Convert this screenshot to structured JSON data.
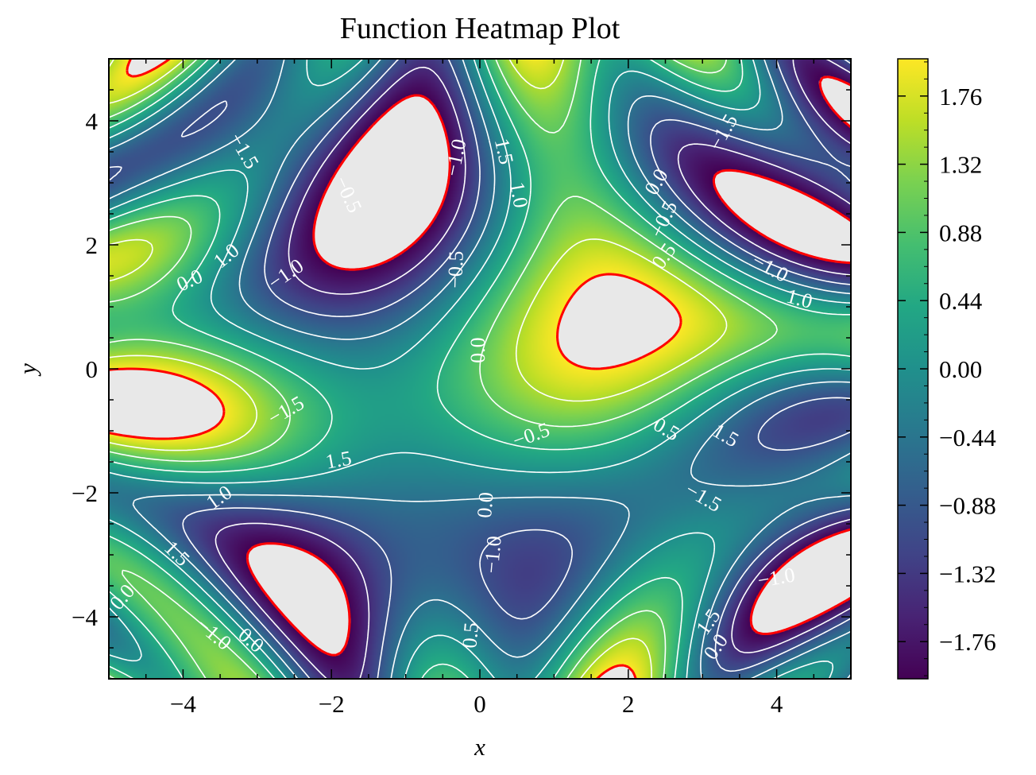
{
  "chart_data": {
    "type": "heatmap",
    "title": "Function Heatmap Plot",
    "xlabel": "x",
    "ylabel": "y",
    "xlim": [
      -5,
      5
    ],
    "ylim": [
      -5,
      5
    ],
    "x_ticks": [
      -4,
      -2,
      0,
      2,
      4
    ],
    "y_ticks": [
      -4,
      -2,
      0,
      2,
      4
    ],
    "x_tick_labels": [
      "−4",
      "−2",
      "0",
      "2",
      "4"
    ],
    "y_tick_labels": [
      "−4",
      "−2",
      "0",
      "2",
      "4"
    ],
    "colormap": "viridis",
    "masked_color": "#e8e8e8",
    "value_range": [
      -2.0,
      2.0
    ],
    "colorbar": {
      "ticks": [
        1.76,
        1.32,
        0.88,
        0.44,
        0.0,
        -0.44,
        -0.88,
        -1.32,
        -1.76
      ],
      "labels": [
        "1.76",
        "1.32",
        "0.88",
        "0.44",
        "0.00",
        "−0.44",
        "−0.88",
        "−1.32",
        "−1.76"
      ]
    },
    "contour_levels": [
      -1.5,
      -1.0,
      -0.5,
      0.0,
      0.5,
      1.0,
      1.5
    ],
    "boundary_level_color": "#ff0000",
    "contour_color": "#ffffff",
    "contour_labels": [
      {
        "text": "−1.5",
        "x": -3.2,
        "y": 3.5,
        "rot": 60
      },
      {
        "text": "−1.5",
        "x": 3.3,
        "y": 3.8,
        "rot": -60
      },
      {
        "text": "−1.0",
        "x": -0.3,
        "y": 3.4,
        "rot": -78
      },
      {
        "text": "1.5",
        "x": 0.3,
        "y": 3.5,
        "rot": 78
      },
      {
        "text": "−0.5",
        "x": -1.8,
        "y": 2.8,
        "rot": 65
      },
      {
        "text": "1.0",
        "x": 0.5,
        "y": 2.8,
        "rot": 80
      },
      {
        "text": "0.0",
        "x": 2.4,
        "y": 3.0,
        "rot": -60
      },
      {
        "text": "−0.5",
        "x": 2.5,
        "y": 2.4,
        "rot": -65
      },
      {
        "text": "0.5",
        "x": 2.5,
        "y": 1.8,
        "rot": -55
      },
      {
        "text": "1.0",
        "x": -3.4,
        "y": 1.8,
        "rot": -40
      },
      {
        "text": "0.0",
        "x": -3.9,
        "y": 1.4,
        "rot": -25
      },
      {
        "text": "−1.0",
        "x": -2.6,
        "y": 1.5,
        "rot": -35
      },
      {
        "text": "−0.5",
        "x": -0.3,
        "y": 1.6,
        "rot": -88
      },
      {
        "text": "0.0",
        "x": 0.0,
        "y": 0.3,
        "rot": -90
      },
      {
        "text": "−1.0",
        "x": 3.9,
        "y": 1.6,
        "rot": 28
      },
      {
        "text": "1.0",
        "x": 4.3,
        "y": 1.1,
        "rot": 15
      },
      {
        "text": "−1.5",
        "x": -2.6,
        "y": -0.7,
        "rot": -30
      },
      {
        "text": "−0.5",
        "x": 0.7,
        "y": -1.1,
        "rot": -20
      },
      {
        "text": "0.5",
        "x": 2.5,
        "y": -1.0,
        "rot": 30
      },
      {
        "text": "1.5",
        "x": 3.3,
        "y": -1.1,
        "rot": 30
      },
      {
        "text": "1.5",
        "x": -1.9,
        "y": -1.5,
        "rot": -10
      },
      {
        "text": "1.0",
        "x": -3.5,
        "y": -2.1,
        "rot": -35
      },
      {
        "text": "0.0",
        "x": 0.1,
        "y": -2.2,
        "rot": -85
      },
      {
        "text": "−1.5",
        "x": 3.0,
        "y": -2.1,
        "rot": 30
      },
      {
        "text": "−1.0",
        "x": 0.2,
        "y": -3.0,
        "rot": -85
      },
      {
        "text": "−1.0",
        "x": 4.0,
        "y": -3.4,
        "rot": -10
      },
      {
        "text": "1.5",
        "x": -4.1,
        "y": -3.0,
        "rot": 45
      },
      {
        "text": "0.0",
        "x": -4.8,
        "y": -3.7,
        "rot": -50
      },
      {
        "text": "0.5",
        "x": -0.1,
        "y": -4.3,
        "rot": -85
      },
      {
        "text": "−1.0",
        "x": -3.6,
        "y": -4.3,
        "rot": 40
      },
      {
        "text": "0.0",
        "x": -3.1,
        "y": -4.4,
        "rot": 40
      },
      {
        "text": "1.5",
        "x": 3.1,
        "y": -4.1,
        "rot": -55
      },
      {
        "text": "0.0",
        "x": 3.2,
        "y": -4.5,
        "rot": -55
      }
    ]
  }
}
